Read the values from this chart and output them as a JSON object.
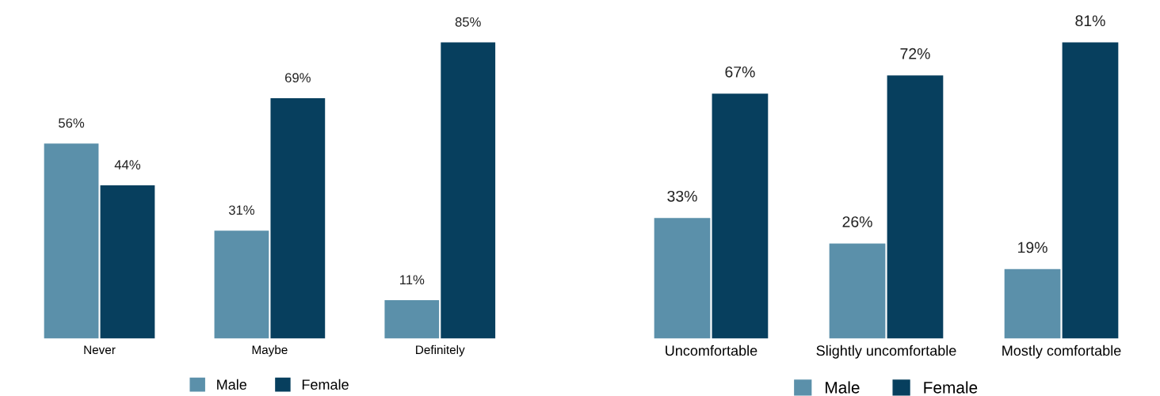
{
  "chart_data": [
    {
      "type": "bar",
      "categories": [
        "Never",
        "Maybe",
        "Definitely"
      ],
      "legend": "bottom",
      "grid": false,
      "series": [
        {
          "name": "Male",
          "color": "#5b90aa",
          "values": [
            56,
            31,
            11
          ],
          "value_labels": [
            "56%",
            "31%",
            "11%"
          ]
        },
        {
          "name": "Female",
          "color": "#073f5e",
          "values": [
            44,
            69,
            85
          ],
          "value_labels": [
            "44%",
            "69%",
            "85%"
          ]
        }
      ]
    },
    {
      "type": "bar",
      "categories": [
        "Uncomfortable",
        "Slightly uncomfortable",
        "Mostly comfortable"
      ],
      "legend": "bottom",
      "grid": false,
      "series": [
        {
          "name": "Male",
          "color": "#5b90aa",
          "values": [
            33,
            26,
            19
          ],
          "value_labels": [
            "33%",
            "26%",
            "19%"
          ]
        },
        {
          "name": "Female",
          "color": "#073f5e",
          "values": [
            67,
            72,
            81
          ],
          "value_labels": [
            "67%",
            "72%",
            "81%"
          ]
        }
      ]
    }
  ]
}
